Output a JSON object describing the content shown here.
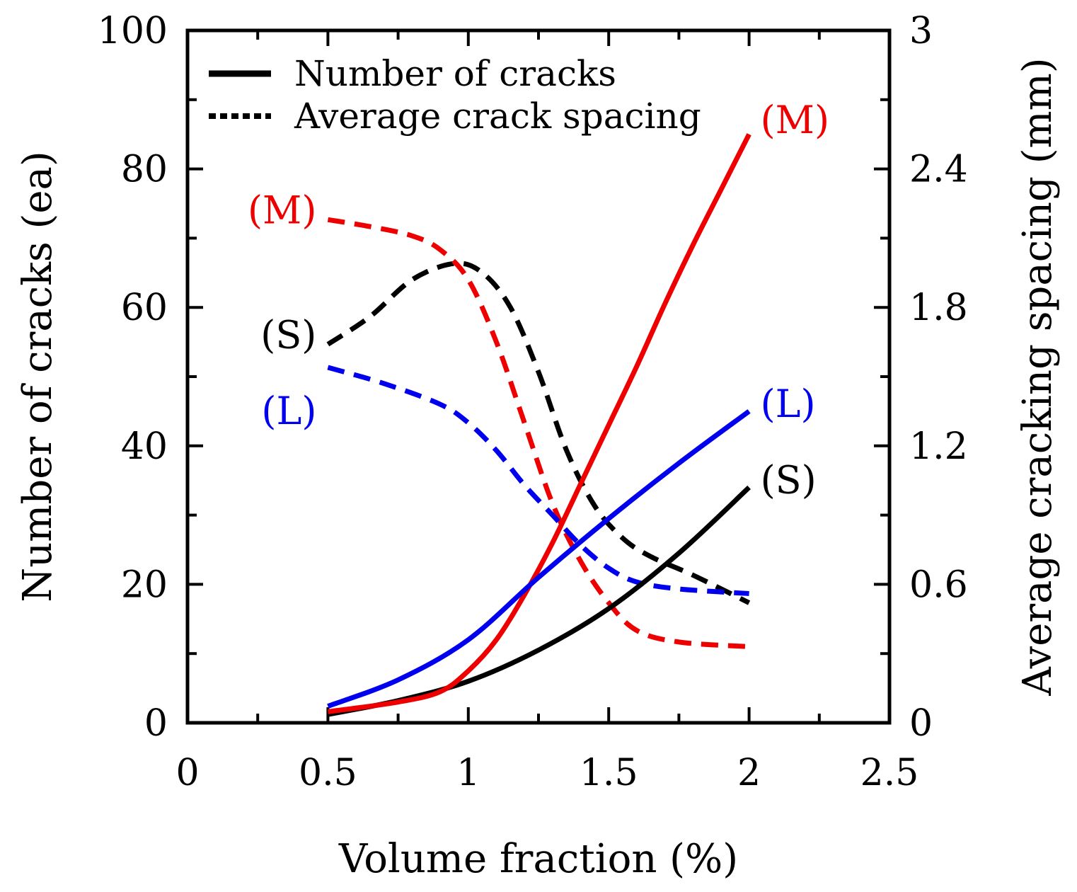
{
  "chart_data": {
    "type": "line",
    "title": "",
    "xlabel": "Volume fraction (%)",
    "ylabel_left": "Number of cracks (ea)",
    "ylabel_right": "Average cracking spacing (mm)",
    "xlim": [
      0,
      2.5
    ],
    "ylim_left": [
      0,
      100
    ],
    "ylim_right": [
      0,
      3
    ],
    "x_ticks": [
      "0",
      "0.5",
      "1",
      "1.5",
      "2",
      "2.5"
    ],
    "y_left_ticks": [
      "0",
      "20",
      "40",
      "60",
      "80",
      "100"
    ],
    "y_right_ticks": [
      "0",
      "0.6",
      "1.2",
      "1.8",
      "2.4",
      "3"
    ],
    "legend": {
      "position": "top-left",
      "entries": [
        {
          "label": "Number of cracks",
          "style": "solid"
        },
        {
          "label": "Average crack spacing",
          "style": "dotted"
        }
      ]
    },
    "series": [
      {
        "name": "(S)",
        "metric": "number_of_cracks",
        "axis": "left",
        "color": "#000000",
        "style": "solid",
        "x": [
          0.5,
          0.75,
          1.0,
          1.25,
          1.5,
          1.75,
          2.0
        ],
        "values": [
          1.2,
          3.2,
          6.0,
          10.5,
          16.5,
          24.5,
          34.0
        ]
      },
      {
        "name": "(M)",
        "metric": "number_of_cracks",
        "axis": "left",
        "color": "#ee0000",
        "style": "solid",
        "x": [
          0.5,
          0.75,
          0.9,
          1.0,
          1.1,
          1.2,
          1.3,
          1.4,
          1.5,
          1.6,
          1.7,
          1.8,
          1.9,
          2.0
        ],
        "values": [
          1.6,
          3.0,
          4.5,
          7.5,
          12.0,
          18.5,
          26.0,
          34.5,
          43.0,
          51.5,
          60.5,
          69.0,
          77.0,
          85.0
        ]
      },
      {
        "name": "(L)",
        "metric": "number_of_cracks",
        "axis": "left",
        "color": "#0000ee",
        "style": "solid",
        "x": [
          0.5,
          0.75,
          1.0,
          1.25,
          1.5,
          1.75,
          2.0
        ],
        "values": [
          2.4,
          6.2,
          12.0,
          21.0,
          29.5,
          37.5,
          45.0
        ]
      },
      {
        "name": "(S)",
        "metric": "average_crack_spacing",
        "axis": "right",
        "color": "#000000",
        "style": "dashed",
        "x": [
          0.5,
          0.65,
          0.8,
          0.95,
          1.05,
          1.15,
          1.25,
          1.35,
          1.45,
          1.55,
          1.65,
          1.8,
          2.0
        ],
        "values": [
          1.64,
          1.76,
          1.92,
          1.99,
          1.95,
          1.8,
          1.52,
          1.18,
          0.94,
          0.8,
          0.72,
          0.64,
          0.52
        ]
      },
      {
        "name": "(M)",
        "metric": "average_crack_spacing",
        "axis": "right",
        "color": "#ee0000",
        "style": "dashed",
        "x": [
          0.5,
          0.65,
          0.8,
          0.9,
          1.0,
          1.1,
          1.2,
          1.3,
          1.4,
          1.5,
          1.6,
          1.75,
          2.0
        ],
        "values": [
          2.18,
          2.15,
          2.11,
          2.05,
          1.92,
          1.65,
          1.3,
          0.95,
          0.7,
          0.52,
          0.4,
          0.35,
          0.33
        ]
      },
      {
        "name": "(L)",
        "metric": "average_crack_spacing",
        "axis": "right",
        "color": "#0000ee",
        "style": "dashed",
        "x": [
          0.5,
          0.7,
          0.9,
          1.0,
          1.1,
          1.2,
          1.3,
          1.4,
          1.5,
          1.6,
          1.75,
          2.0
        ],
        "values": [
          1.54,
          1.47,
          1.38,
          1.3,
          1.18,
          1.03,
          0.9,
          0.77,
          0.67,
          0.61,
          0.58,
          0.56
        ]
      }
    ],
    "annotations": [
      {
        "text": "(M)",
        "color": "#ee0000",
        "x": 2.0,
        "y_left": 87,
        "anchor": "right"
      },
      {
        "text": "(L)",
        "color": "#0000ee",
        "x": 2.0,
        "y_left": 46,
        "anchor": "right"
      },
      {
        "text": "(S)",
        "color": "#000000",
        "x": 2.0,
        "y_left": 35,
        "anchor": "right"
      },
      {
        "text": "(M)",
        "color": "#ee0000",
        "x": 0.5,
        "y_left": 74,
        "anchor": "left"
      },
      {
        "text": "(S)",
        "color": "#000000",
        "x": 0.5,
        "y_left": 56,
        "anchor": "left"
      },
      {
        "text": "(L)",
        "color": "#0000ee",
        "x": 0.5,
        "y_left": 45,
        "anchor": "left"
      }
    ]
  }
}
